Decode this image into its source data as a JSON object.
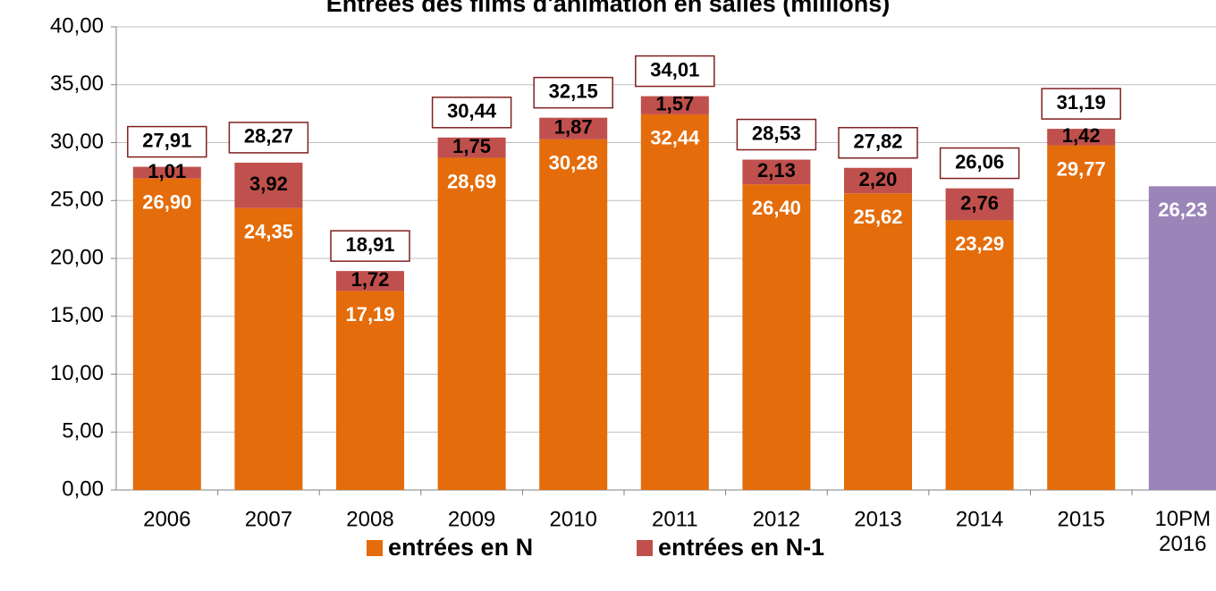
{
  "chart_data": {
    "type": "stacked_bar",
    "title": "Entrées des films d'animation en salles (millions)",
    "categories": [
      "2006",
      "2007",
      "2008",
      "2009",
      "2010",
      "2011",
      "2012",
      "2013",
      "2014",
      "2015",
      "10PM 2016"
    ],
    "series": [
      {
        "name": "entrées en N",
        "color": "#e46c0a",
        "colors": [
          "#e46c0a",
          "#e46c0a",
          "#e46c0a",
          "#e46c0a",
          "#e46c0a",
          "#e46c0a",
          "#e46c0a",
          "#e46c0a",
          "#e46c0a",
          "#e46c0a",
          "#9b85b8"
        ],
        "values": [
          26.9,
          24.35,
          17.19,
          28.69,
          30.28,
          32.44,
          26.4,
          25.62,
          23.29,
          29.77,
          26.23
        ],
        "value_labels": [
          "26,90",
          "24,35",
          "17,19",
          "28,69",
          "30,28",
          "32,44",
          "26,40",
          "25,62",
          "23,29",
          "29,77",
          "26,23"
        ]
      },
      {
        "name": "entrées en N-1",
        "color": "#c0504d",
        "values": [
          1.01,
          3.92,
          1.72,
          1.75,
          1.87,
          1.57,
          2.13,
          2.2,
          2.76,
          1.42,
          null
        ],
        "value_labels": [
          "1,01",
          "3,92",
          "1,72",
          "1,75",
          "1,87",
          "1,57",
          "2,13",
          "2,20",
          "2,76",
          "1,42",
          null
        ]
      }
    ],
    "totals": [
      27.91,
      28.27,
      18.91,
      30.44,
      32.15,
      34.01,
      28.53,
      27.82,
      26.06,
      31.19,
      null
    ],
    "total_labels": [
      "27,91",
      "28,27",
      "18,91",
      "30,44",
      "32,15",
      "34,01",
      "28,53",
      "27,82",
      "26,06",
      "31,19",
      null
    ],
    "ylim": [
      0,
      40
    ],
    "yticks": [
      {
        "value": 0,
        "label": "0,00"
      },
      {
        "value": 5,
        "label": "5,00"
      },
      {
        "value": 10,
        "label": "10,00"
      },
      {
        "value": 15,
        "label": "15,00"
      },
      {
        "value": 20,
        "label": "20,00"
      },
      {
        "value": 25,
        "label": "25,00"
      },
      {
        "value": 30,
        "label": "30,00"
      },
      {
        "value": 35,
        "label": "35,00"
      },
      {
        "value": 40,
        "label": "40,00"
      }
    ],
    "grid": true,
    "legend": "bottom"
  }
}
